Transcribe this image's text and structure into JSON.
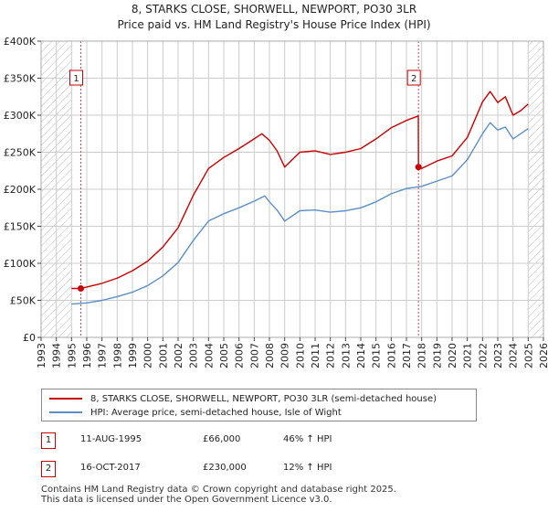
{
  "title": {
    "line1": "8, STARKS CLOSE, SHORWELL, NEWPORT, PO30 3LR",
    "line2": "Price paid vs. HM Land Registry's House Price Index (HPI)"
  },
  "colors": {
    "property": "#cc0000",
    "hpi": "#5b8fc9",
    "grid": "#cccccc",
    "hatch": "#bbbbbb"
  },
  "chart_data": {
    "type": "line",
    "xlim": [
      1993,
      2026
    ],
    "ylim": [
      0,
      400000
    ],
    "x_ticks": [
      "1993",
      "1994",
      "1995",
      "1996",
      "1997",
      "1998",
      "1999",
      "2000",
      "2001",
      "2002",
      "2003",
      "2004",
      "2005",
      "2006",
      "2007",
      "2008",
      "2009",
      "2010",
      "2011",
      "2012",
      "2013",
      "2014",
      "2015",
      "2016",
      "2017",
      "2018",
      "2019",
      "2020",
      "2021",
      "2022",
      "2023",
      "2024",
      "2025",
      "2026"
    ],
    "y_ticks": [
      {
        "value": 0,
        "label": "£0"
      },
      {
        "value": 50000,
        "label": "£50K"
      },
      {
        "value": 100000,
        "label": "£100K"
      },
      {
        "value": 150000,
        "label": "£150K"
      },
      {
        "value": 200000,
        "label": "£200K"
      },
      {
        "value": 250000,
        "label": "£250K"
      },
      {
        "value": 300000,
        "label": "£300K"
      },
      {
        "value": 350000,
        "label": "£350K"
      },
      {
        "value": 400000,
        "label": "£400K"
      }
    ],
    "shaded_before": 1995.0,
    "shaded_after": 2025.0,
    "series": [
      {
        "name": "8, STARKS CLOSE, SHORWELL, NEWPORT, PO30 3LR (semi-detached house)",
        "color": "#cc0000",
        "points": [
          [
            1995.0,
            66000
          ],
          [
            1995.61,
            66000
          ],
          [
            1996.0,
            68000
          ],
          [
            1997.0,
            73000
          ],
          [
            1998.0,
            80000
          ],
          [
            1999.0,
            90000
          ],
          [
            2000.0,
            103000
          ],
          [
            2001.0,
            122000
          ],
          [
            2002.0,
            148000
          ],
          [
            2003.0,
            192000
          ],
          [
            2004.0,
            228000
          ],
          [
            2005.0,
            243000
          ],
          [
            2006.0,
            255000
          ],
          [
            2007.0,
            268000
          ],
          [
            2007.5,
            275000
          ],
          [
            2008.0,
            266000
          ],
          [
            2008.5,
            252000
          ],
          [
            2009.0,
            230000
          ],
          [
            2010.0,
            250000
          ],
          [
            2011.0,
            252000
          ],
          [
            2012.0,
            247000
          ],
          [
            2013.0,
            250000
          ],
          [
            2014.0,
            255000
          ],
          [
            2015.0,
            268000
          ],
          [
            2016.0,
            283000
          ],
          [
            2017.0,
            293000
          ],
          [
            2017.78,
            299000
          ],
          [
            2017.79,
            230000
          ],
          [
            2018.0,
            228000
          ],
          [
            2019.0,
            238000
          ],
          [
            2020.0,
            245000
          ],
          [
            2021.0,
            270000
          ],
          [
            2022.0,
            318000
          ],
          [
            2022.5,
            332000
          ],
          [
            2023.0,
            317000
          ],
          [
            2023.5,
            325000
          ],
          [
            2024.0,
            300000
          ],
          [
            2024.5,
            306000
          ],
          [
            2025.0,
            315000
          ]
        ]
      },
      {
        "name": "HPI: Average price, semi-detached house, Isle of Wight",
        "color": "#5b8fc9",
        "points": [
          [
            1995.0,
            45000
          ],
          [
            1996.0,
            46500
          ],
          [
            1997.0,
            50000
          ],
          [
            1998.0,
            55000
          ],
          [
            1999.0,
            61000
          ],
          [
            2000.0,
            70000
          ],
          [
            2001.0,
            83000
          ],
          [
            2002.0,
            101000
          ],
          [
            2003.0,
            131000
          ],
          [
            2004.0,
            157000
          ],
          [
            2005.0,
            167000
          ],
          [
            2006.0,
            175000
          ],
          [
            2007.0,
            184000
          ],
          [
            2007.7,
            191000
          ],
          [
            2008.0,
            183000
          ],
          [
            2008.5,
            172000
          ],
          [
            2009.0,
            157000
          ],
          [
            2010.0,
            171000
          ],
          [
            2011.0,
            172000
          ],
          [
            2012.0,
            169000
          ],
          [
            2013.0,
            171000
          ],
          [
            2014.0,
            175000
          ],
          [
            2015.0,
            183000
          ],
          [
            2016.0,
            194000
          ],
          [
            2017.0,
            201000
          ],
          [
            2018.0,
            204000
          ],
          [
            2019.0,
            211000
          ],
          [
            2020.0,
            218000
          ],
          [
            2021.0,
            240000
          ],
          [
            2022.0,
            275000
          ],
          [
            2022.5,
            290000
          ],
          [
            2023.0,
            280000
          ],
          [
            2023.5,
            284000
          ],
          [
            2024.0,
            268000
          ],
          [
            2024.5,
            275000
          ],
          [
            2025.0,
            282000
          ]
        ]
      }
    ],
    "sales": [
      {
        "label": "1",
        "x": 1995.61,
        "value": 66000
      },
      {
        "label": "2",
        "x": 2017.79,
        "value": 230000
      }
    ]
  },
  "legend": {
    "property_label": "8, STARKS CLOSE, SHORWELL, NEWPORT, PO30 3LR (semi-detached house)",
    "hpi_label": "HPI: Average price, semi-detached house, Isle of Wight"
  },
  "sales_table": [
    {
      "num": "1",
      "date": "11-AUG-1995",
      "price": "£66,000",
      "hpi": "46% ↑ HPI"
    },
    {
      "num": "2",
      "date": "16-OCT-2017",
      "price": "£230,000",
      "hpi": "12% ↑ HPI"
    }
  ],
  "footer": {
    "line1": "Contains HM Land Registry data © Crown copyright and database right 2025.",
    "line2": "This data is licensed under the Open Government Licence v3.0."
  }
}
